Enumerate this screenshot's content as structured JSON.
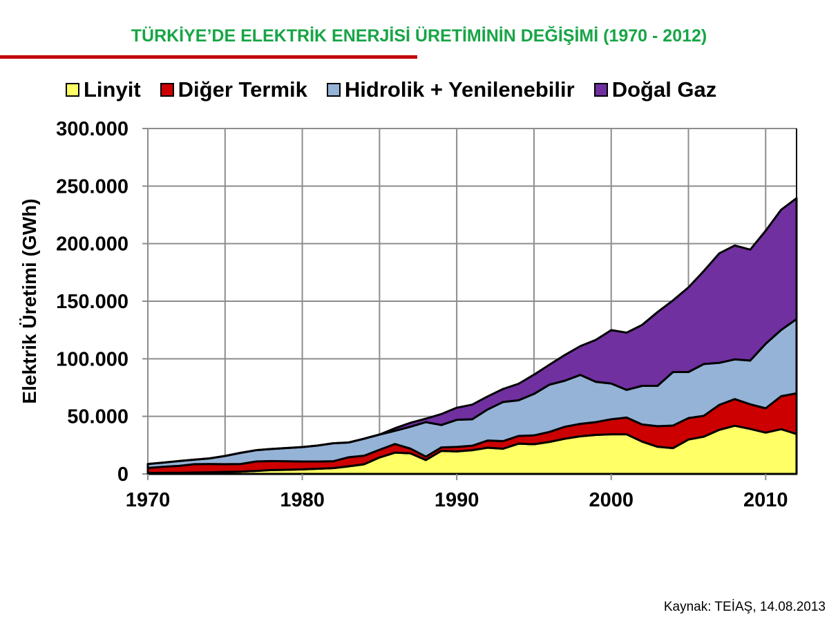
{
  "chart_data": {
    "type": "area",
    "stacked": true,
    "title": "TÜRKİYE’DE ELEKTRİK ENERJİSİ ÜRETİMİNİN DEĞİŞİMİ (1970 - 2012)",
    "xlabel": "",
    "ylabel": "Elektrik Üretimi (GWh)",
    "value_scale_note": "values in thousand GWh",
    "xlim": [
      1970,
      2012
    ],
    "ylim": [
      0,
      300000
    ],
    "grid": true,
    "legend_position": "top",
    "x_ticks": [
      "1970",
      "1980",
      "1990",
      "2000",
      "2010"
    ],
    "y_ticks": [
      "0",
      "50.000",
      "100.000",
      "150.000",
      "200.000",
      "250.000",
      "300.000"
    ],
    "x": [
      1970,
      1971,
      1972,
      1973,
      1974,
      1975,
      1976,
      1977,
      1978,
      1979,
      1980,
      1981,
      1982,
      1983,
      1984,
      1985,
      1986,
      1987,
      1988,
      1989,
      1990,
      1991,
      1992,
      1993,
      1994,
      1995,
      1996,
      1997,
      1998,
      1999,
      2000,
      2001,
      2002,
      2003,
      2004,
      2005,
      2006,
      2007,
      2008,
      2009,
      2010,
      2011,
      2012
    ],
    "series": [
      {
        "name": "Linyit",
        "color": "#ffff66",
        "values": [
          0.8,
          0.9,
          1.0,
          1.2,
          1.4,
          1.8,
          2.0,
          2.6,
          3.4,
          3.6,
          4.0,
          4.5,
          5.0,
          6.6,
          8.4,
          14.3,
          18.5,
          17.9,
          12.1,
          20.0,
          19.6,
          20.6,
          22.8,
          21.9,
          26.3,
          25.8,
          27.8,
          30.6,
          32.7,
          33.9,
          34.4,
          34.4,
          28.1,
          23.6,
          22.4,
          29.9,
          32.4,
          38.3,
          41.9,
          39.1,
          35.9,
          38.9,
          34.7
        ]
      },
      {
        "name": "Diğer Termik",
        "color": "#cc0000",
        "values": [
          4.4,
          5.3,
          6.0,
          7.3,
          7.2,
          6.7,
          6.6,
          8.2,
          7.8,
          7.4,
          6.8,
          6.3,
          6.0,
          7.9,
          7.4,
          6.7,
          7.5,
          4.1,
          2.9,
          3.0,
          3.9,
          3.9,
          6.2,
          6.6,
          6.7,
          7.7,
          8.7,
          10.4,
          10.8,
          11.1,
          13.1,
          14.6,
          14.9,
          17.9,
          19.6,
          18.6,
          18.1,
          21.7,
          23.1,
          21.4,
          21.1,
          28.6,
          35.3
        ]
      },
      {
        "name": "Hidrolik + Yenilenebilir",
        "color": "#95b3d7",
        "values": [
          3.4,
          3.6,
          4.2,
          3.9,
          4.9,
          7.1,
          9.7,
          9.8,
          10.5,
          11.5,
          12.5,
          13.9,
          15.6,
          12.8,
          14.8,
          13.2,
          11.5,
          19.0,
          30.0,
          19.5,
          23.5,
          23.0,
          27.0,
          34.0,
          31.0,
          36.0,
          41.0,
          40.0,
          42.5,
          35.0,
          31.0,
          24.0,
          33.5,
          35.0,
          46.5,
          40.0,
          45.0,
          36.5,
          34.5,
          38.0,
          56.0,
          57.5,
          64.5
        ]
      },
      {
        "name": "Doğal Gaz",
        "color": "#7030a0",
        "values": [
          0,
          0,
          0,
          0,
          0,
          0,
          0,
          0,
          0,
          0,
          0,
          0,
          0,
          0,
          0,
          0,
          2.2,
          3.4,
          3.0,
          9.5,
          10.5,
          12.7,
          11.3,
          11.3,
          14.3,
          16.7,
          17.4,
          22.3,
          25.0,
          36.4,
          46.4,
          49.7,
          52.9,
          64.1,
          62.2,
          73.5,
          80.8,
          95.1,
          98.9,
          96.3,
          98.2,
          104.4,
          105.0
        ]
      }
    ],
    "source": "Kaynak: TEİAŞ, 14.08.2013"
  }
}
